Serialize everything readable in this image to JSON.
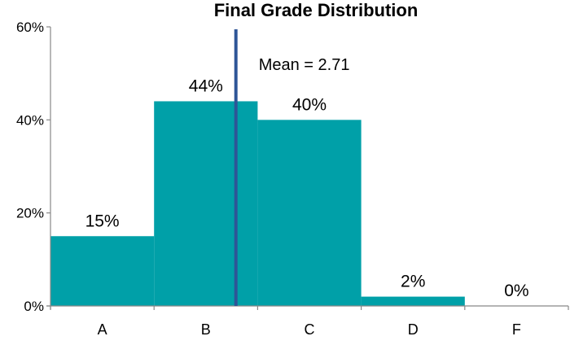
{
  "chart_data": {
    "type": "bar",
    "title": "Final Grade Distribution",
    "xlabel": "",
    "ylabel": "",
    "categories": [
      "A",
      "B",
      "C",
      "D",
      "F"
    ],
    "values": [
      15,
      44,
      40,
      2,
      0
    ],
    "data_labels": [
      "15%",
      "44%",
      "40%",
      "2%",
      "0%"
    ],
    "ylim": [
      0,
      60
    ],
    "yticks": [
      0,
      20,
      40,
      60
    ],
    "ytick_labels": [
      "0%",
      "20%",
      "40%",
      "60%"
    ],
    "bar_color": "#00A0A8",
    "grid": false,
    "mean_line": {
      "x": 2.71,
      "label": "Mean = 2.71",
      "color": "#2E5597"
    }
  }
}
